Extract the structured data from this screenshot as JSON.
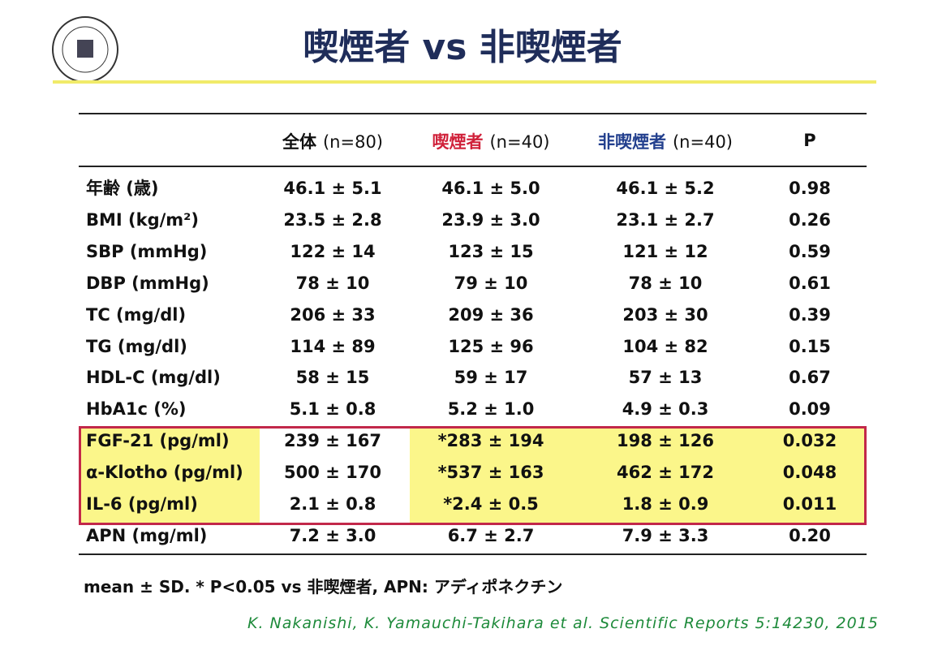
{
  "header": {
    "title": "喫煙者 vs 非喫煙者"
  },
  "table": {
    "columns": [
      {
        "label": "全体",
        "n": "(n=80)",
        "color": "#111111"
      },
      {
        "label": "喫煙者",
        "n": "(n=40)",
        "color": "#d0213a"
      },
      {
        "label": "非喫煙者",
        "n": "(n=40)",
        "color": "#23408e"
      }
    ],
    "p_header": "P",
    "rows": [
      {
        "label": "年齢 (歳)",
        "values": [
          "46.1 ± 5.1",
          "46.1 ± 5.0",
          "46.1 ± 5.2"
        ],
        "p": "0.98"
      },
      {
        "label": "BMI (kg/m²)",
        "values": [
          "23.5 ± 2.8",
          "23.9 ± 3.0",
          "23.1 ± 2.7"
        ],
        "p": "0.26"
      },
      {
        "label": "SBP (mmHg)",
        "values": [
          "122 ± 14",
          "123 ± 15",
          "121 ± 12"
        ],
        "p": "0.59"
      },
      {
        "label": "DBP (mmHg)",
        "values": [
          "78 ± 10",
          "79 ± 10",
          "78 ± 10"
        ],
        "p": "0.61"
      },
      {
        "label": "TC (mg/dl)",
        "values": [
          "206 ± 33",
          "209 ± 36",
          "203 ± 30"
        ],
        "p": "0.39"
      },
      {
        "label": "TG (mg/dl)",
        "values": [
          "114 ± 89",
          "125 ± 96",
          "104 ± 82"
        ],
        "p": "0.15"
      },
      {
        "label": "HDL-C (mg/dl)",
        "values": [
          "58 ± 15",
          "59 ± 17",
          "57 ± 13"
        ],
        "p": "0.67"
      },
      {
        "label": "HbA1c (%)",
        "values": [
          "5.1 ± 0.8",
          "5.2 ± 1.0",
          "4.9 ± 0.3"
        ],
        "p": "0.09"
      },
      {
        "label": "FGF-21 (pg/ml)",
        "values": [
          "239 ± 167",
          "*283 ± 194",
          "198 ± 126"
        ],
        "p": "0.032",
        "highlighted": true
      },
      {
        "label": "α-Klotho (pg/ml)",
        "values": [
          "500 ± 170",
          "*537 ± 163",
          "462 ± 172"
        ],
        "p": "0.048",
        "highlighted": true
      },
      {
        "label": "IL-6 (pg/ml)",
        "values": [
          "2.1 ± 0.8",
          "*2.4 ± 0.5",
          "1.8 ± 0.9"
        ],
        "p": "0.011",
        "highlighted": true
      },
      {
        "label": "APN (mg/ml)",
        "values": [
          "7.2 ± 3.0",
          "6.7 ± 2.7",
          "7.9 ± 3.3"
        ],
        "p": "0.20"
      }
    ]
  },
  "footnote": "mean ± SD. * P<0.05 vs 非喫煙者, APN: アディポネクチン",
  "citation": "K. Nakanishi, K. Yamauchi-Takihara et al. Scientific Reports 5:14230, 2015"
}
